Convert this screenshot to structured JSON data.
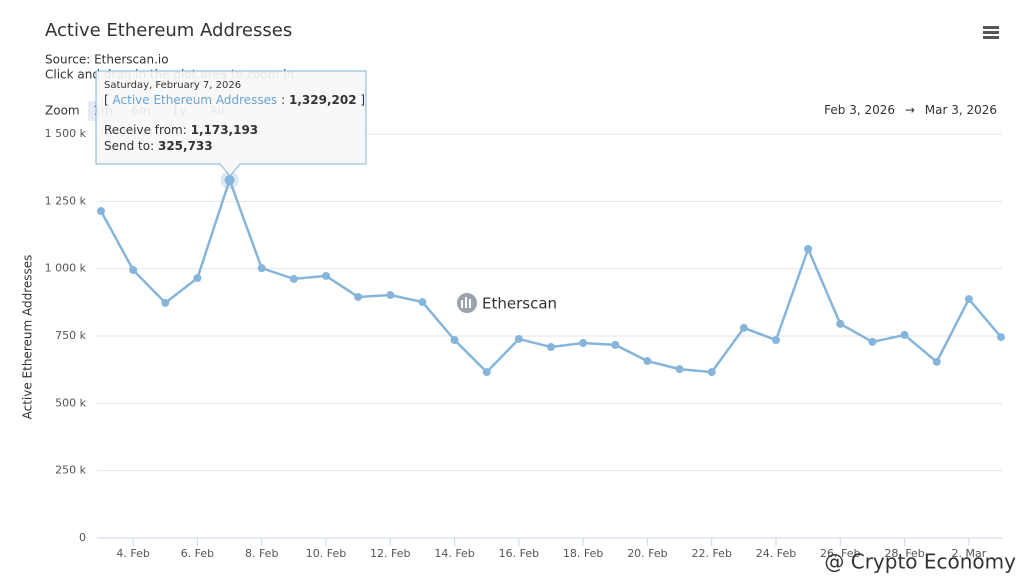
{
  "chart_data": {
    "type": "line",
    "title": "Active Ethereum Addresses",
    "subtitle": "Source: Etherscan.io",
    "instruction": "Click and drag in the plot area to zoom in",
    "y_label": "Active Ethereum Addresses",
    "x": [
      "2026-02-03",
      "2026-02-04",
      "2026-02-05",
      "2026-02-06",
      "2026-02-07",
      "2026-02-08",
      "2026-02-09",
      "2026-02-10",
      "2026-02-11",
      "2026-02-12",
      "2026-02-13",
      "2026-02-14",
      "2026-02-15",
      "2026-02-16",
      "2026-02-17",
      "2026-02-18",
      "2026-02-19",
      "2026-02-20",
      "2026-02-21",
      "2026-02-22",
      "2026-02-23",
      "2026-02-24",
      "2026-02-25",
      "2026-02-26",
      "2026-02-27",
      "2026-02-28",
      "2026-03-01",
      "2026-03-02",
      "2026-03-03"
    ],
    "series": [
      {
        "name": "Active Ethereum Addresses",
        "color": "#86b5db",
        "values": [
          1214000,
          995000,
          873000,
          965000,
          1329202,
          1002000,
          962000,
          973000,
          895000,
          902000,
          876000,
          735000,
          616000,
          739000,
          709000,
          724000,
          717000,
          657000,
          627000,
          616000,
          780000,
          735000,
          1073000,
          795000,
          728000,
          754000,
          654000,
          887000,
          746000
        ],
        "value_labels": [
          null,
          null,
          null,
          null,
          "1,329,202",
          null,
          null,
          null,
          null,
          null,
          null,
          null,
          null,
          null,
          null,
          null,
          null,
          null,
          null,
          null,
          null,
          null,
          null,
          null,
          null,
          null,
          null,
          null,
          null
        ]
      }
    ],
    "xlim": [
      "2026-02-03",
      "2026-03-03"
    ],
    "xticks": [
      {
        "value": "2026-02-04",
        "label": "4. Feb"
      },
      {
        "value": "2026-02-06",
        "label": "6. Feb"
      },
      {
        "value": "2026-02-08",
        "label": "8. Feb"
      },
      {
        "value": "2026-02-10",
        "label": "10. Feb"
      },
      {
        "value": "2026-02-12",
        "label": "12. Feb"
      },
      {
        "value": "2026-02-14",
        "label": "14. Feb"
      },
      {
        "value": "2026-02-16",
        "label": "16. Feb"
      },
      {
        "value": "2026-02-18",
        "label": "18. Feb"
      },
      {
        "value": "2026-02-20",
        "label": "20. Feb"
      },
      {
        "value": "2026-02-22",
        "label": "22. Feb"
      },
      {
        "value": "2026-02-24",
        "label": "24. Feb"
      },
      {
        "value": "2026-02-26",
        "label": "26. Feb"
      },
      {
        "value": "2026-02-28",
        "label": "28. Feb"
      },
      {
        "value": "2026-03-02",
        "label": "2. Mar"
      }
    ],
    "ylim": [
      0,
      1500000
    ],
    "yticks": [
      0,
      {
        "value": 250000,
        "label": "250 k"
      },
      {
        "value": 500000,
        "label": "500 k"
      },
      {
        "value": 750000,
        "label": "750 k"
      },
      {
        "value": 1000000,
        "label": "1 000 k"
      },
      {
        "value": 1250000,
        "label": "1 250 k"
      },
      {
        "value": 1500000,
        "label": "1 500 k"
      }
    ],
    "grid": true,
    "zoom": {
      "label": "Zoom",
      "buttons": [
        "1m",
        "6m",
        "1y",
        "All"
      ],
      "active": 0
    },
    "range": {
      "from": "Feb 3, 2026",
      "arrow": "→",
      "to": "Mar 3, 2026"
    },
    "tooltip": {
      "index": 4,
      "date": "Saturday, February 7, 2026",
      "open": "[",
      "sep": ":",
      "close": "]",
      "receive_label": "Receive from:",
      "receive": "1,173,193",
      "send_label": "Send to:",
      "send": "325,733"
    },
    "watermark": "Etherscan",
    "credit": "@ Crypto Economy"
  }
}
